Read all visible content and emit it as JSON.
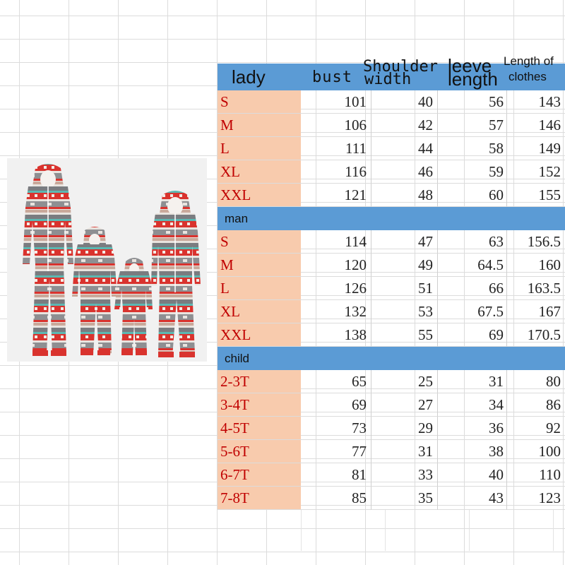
{
  "header": {
    "col0": "lady",
    "col1": "bust",
    "col2_top": "Shoulder",
    "col2_bottom": "width",
    "col3_top": "leeve",
    "col3_bottom": "length",
    "col4_top": "Length of",
    "col4_bottom": "clothes"
  },
  "sections": {
    "lady": [
      [
        "S",
        "101",
        "40",
        "56",
        "143"
      ],
      [
        "M",
        "106",
        "42",
        "57",
        "146"
      ],
      [
        "L",
        "111",
        "44",
        "58",
        "149"
      ],
      [
        "XL",
        "116",
        "46",
        "59",
        "152"
      ],
      [
        "XXL",
        "121",
        "48",
        "60",
        "155"
      ]
    ],
    "man_label": "man",
    "man": [
      [
        "S",
        "114",
        "47",
        "63",
        "156.5"
      ],
      [
        "M",
        "120",
        "49",
        "64.5",
        "160"
      ],
      [
        "L",
        "126",
        "51",
        "66",
        "163.5"
      ],
      [
        "XL",
        "132",
        "53",
        "67.5",
        "167"
      ],
      [
        "XXL",
        "138",
        "55",
        "69",
        "170.5"
      ]
    ],
    "child_label": "child",
    "child": [
      [
        "2-3T",
        "65",
        "25",
        "31",
        "80"
      ],
      [
        "3-4T",
        "69",
        "27",
        "34",
        "86"
      ],
      [
        "4-5T",
        "73",
        "29",
        "36",
        "92"
      ],
      [
        "5-6T",
        "77",
        "31",
        "38",
        "100"
      ],
      [
        "6-7T",
        "81",
        "33",
        "40",
        "110"
      ],
      [
        "7-8T",
        "85",
        "35",
        "43",
        "123"
      ]
    ]
  },
  "colors": {
    "header_blue": "#5b9bd5",
    "size_col_bg": "#f8cbad",
    "size_text": "#c00000"
  }
}
